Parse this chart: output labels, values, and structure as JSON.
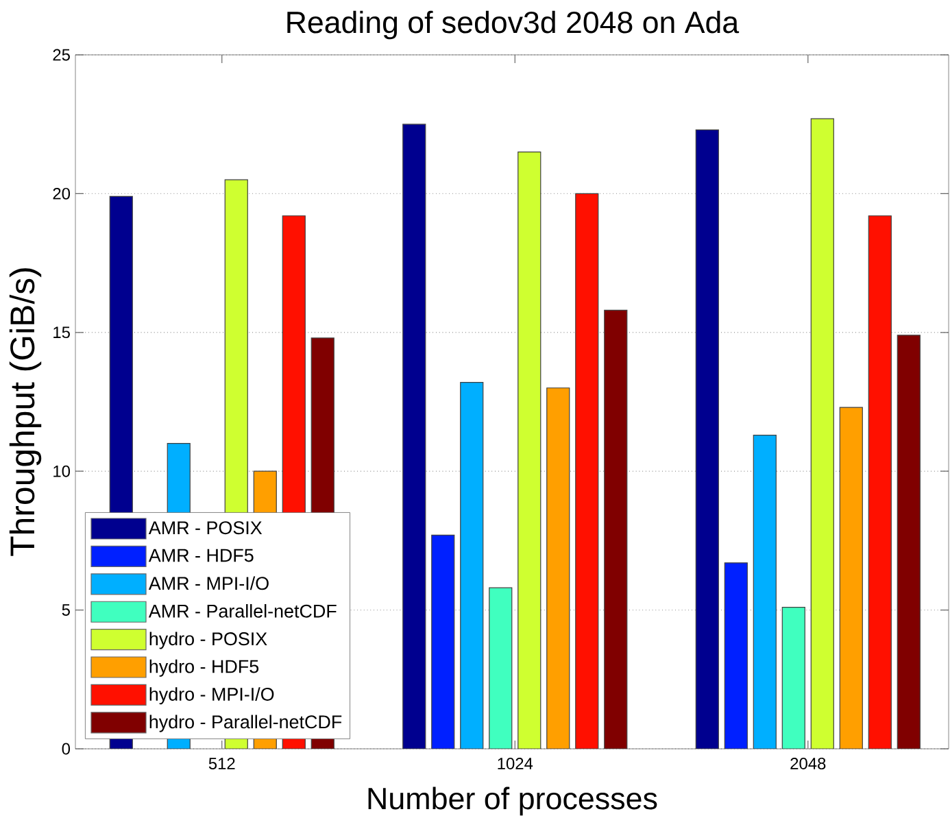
{
  "chart_data": {
    "type": "bar",
    "title": "Reading of sedov3d 2048 on Ada",
    "xlabel": "Number of processes",
    "ylabel": "Throughput (GiB/s)",
    "categories": [
      "512",
      "1024",
      "2048"
    ],
    "series": [
      {
        "name": "AMR - POSIX",
        "color": "#00008f",
        "values": [
          19.9,
          22.5,
          22.3
        ]
      },
      {
        "name": "AMR - HDF5",
        "color": "#0020ff",
        "values": [
          null,
          7.7,
          6.7
        ]
      },
      {
        "name": "AMR - MPI-I/O",
        "color": "#00afff",
        "values": [
          11.0,
          13.2,
          11.3
        ]
      },
      {
        "name": "AMR - Parallel-netCDF",
        "color": "#40ffbf",
        "values": [
          null,
          5.8,
          5.1
        ]
      },
      {
        "name": "hydro - POSIX",
        "color": "#cfff30",
        "values": [
          20.5,
          21.5,
          22.7
        ]
      },
      {
        "name": "hydro - HDF5",
        "color": "#ff9f00",
        "values": [
          10.0,
          13.0,
          12.3
        ]
      },
      {
        "name": "hydro - MPI-I/O",
        "color": "#ff1000",
        "values": [
          19.2,
          20.0,
          19.2
        ]
      },
      {
        "name": "hydro - Parallel-netCDF",
        "color": "#800000",
        "values": [
          14.8,
          15.8,
          14.9
        ]
      }
    ],
    "ylim": [
      0,
      25
    ],
    "yticks": [
      0,
      5,
      10,
      15,
      20,
      25
    ],
    "grid": "y",
    "legend": "bottom left"
  }
}
